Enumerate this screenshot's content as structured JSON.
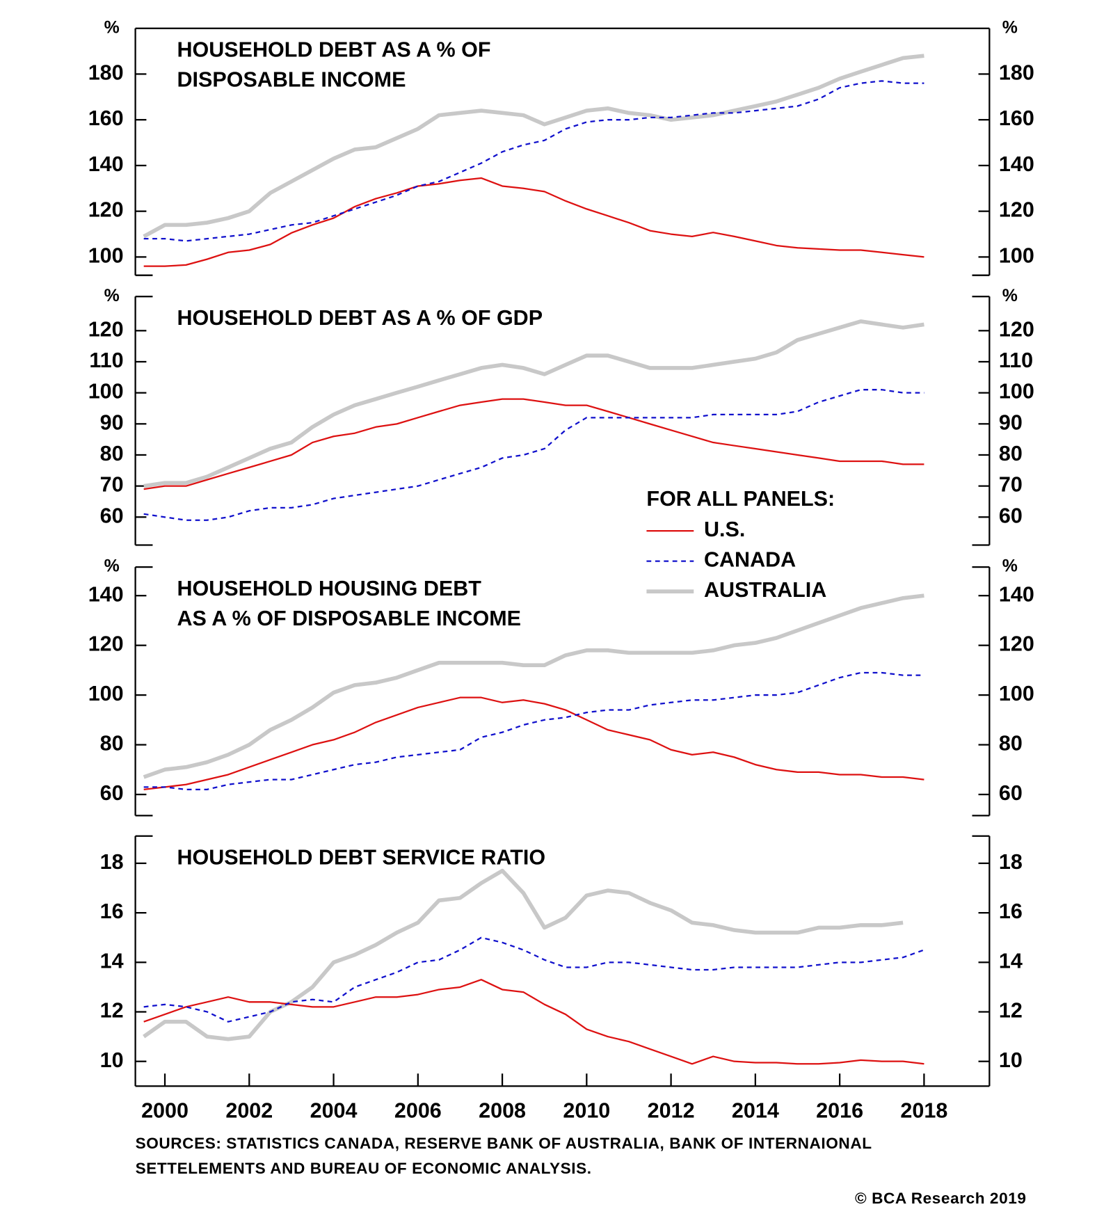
{
  "chart_data": [
    {
      "type": "line",
      "title": [
        "HOUSEHOLD DEBT AS A % OF",
        "DISPOSABLE INCOME"
      ],
      "y_unit": "%",
      "x": [
        1999.5,
        2000,
        2000.5,
        2001,
        2001.5,
        2002,
        2002.5,
        2003,
        2003.5,
        2004,
        2004.5,
        2005,
        2005.5,
        2006,
        2006.5,
        2007,
        2007.5,
        2008,
        2008.5,
        2009,
        2009.5,
        2010,
        2010.5,
        2011,
        2011.5,
        2012,
        2012.5,
        2013,
        2013.5,
        2014,
        2014.5,
        2015,
        2015.5,
        2016,
        2016.5,
        2017,
        2017.5,
        2018
      ],
      "xlim": [
        1999.3,
        2019.55
      ],
      "ylim": [
        92,
        200
      ],
      "yticks": [
        100,
        120,
        140,
        160,
        180
      ],
      "series": [
        {
          "name": "U.S.",
          "color": "#dd1111",
          "style": "solid",
          "width": 2,
          "values": [
            96,
            96,
            96.5,
            99,
            102,
            103,
            105.5,
            110.5,
            114,
            117,
            122,
            125.5,
            128,
            131,
            132,
            133.5,
            134.5,
            131,
            130,
            128.6,
            124.5,
            121,
            118,
            115,
            111.5,
            110,
            109,
            110.7,
            109,
            107,
            105,
            104,
            103.5,
            103,
            103,
            102,
            101,
            100
          ]
        },
        {
          "name": "CANADA",
          "color": "#1010cc",
          "style": "dashed",
          "width": 2,
          "values": [
            108,
            108,
            107,
            108,
            109,
            110,
            112,
            114,
            115,
            118,
            121,
            124,
            127,
            131,
            133,
            137,
            141,
            146,
            149,
            151,
            156,
            159,
            160,
            160,
            161,
            161,
            162,
            163,
            163,
            164,
            165,
            166,
            169,
            174,
            176,
            177,
            176,
            176
          ]
        },
        {
          "name": "AUSTRALIA",
          "color": "#c8c8c8",
          "style": "solid",
          "width": 5,
          "values": [
            109,
            114,
            114,
            115,
            117,
            120,
            128,
            133,
            138,
            143,
            147,
            148,
            152,
            156,
            162,
            163,
            164,
            163,
            162,
            158,
            161,
            164,
            165,
            163,
            162,
            160,
            161,
            162,
            164,
            166,
            168,
            171,
            174,
            178,
            181,
            184,
            187,
            188
          ]
        }
      ]
    },
    {
      "type": "line",
      "title": [
        "HOUSEHOLD DEBT AS A % OF GDP"
      ],
      "y_unit": "%",
      "x": [
        1999.5,
        2000,
        2000.5,
        2001,
        2001.5,
        2002,
        2002.5,
        2003,
        2003.5,
        2004,
        2004.5,
        2005,
        2005.5,
        2006,
        2006.5,
        2007,
        2007.5,
        2008,
        2008.5,
        2009,
        2009.5,
        2010,
        2010.5,
        2011,
        2011.5,
        2012,
        2012.5,
        2013,
        2013.5,
        2014,
        2014.5,
        2015,
        2015.5,
        2016,
        2016.5,
        2017,
        2017.5,
        2018
      ],
      "xlim": [
        1999.3,
        2019.55
      ],
      "ylim": [
        51,
        131
      ],
      "yticks": [
        60,
        70,
        80,
        90,
        100,
        110,
        120
      ],
      "series": [
        {
          "name": "U.S.",
          "color": "#dd1111",
          "style": "solid",
          "width": 2,
          "values": [
            69,
            70,
            70,
            72,
            74,
            76,
            78,
            80,
            84,
            86,
            87,
            89,
            90,
            92,
            94,
            96,
            97,
            98,
            98,
            97,
            96,
            96,
            94,
            92,
            90,
            88,
            86,
            84,
            83,
            82,
            81,
            80,
            79,
            78,
            78,
            78,
            77,
            77
          ]
        },
        {
          "name": "CANADA",
          "color": "#1010cc",
          "style": "dashed",
          "width": 2,
          "values": [
            61,
            60,
            59,
            59,
            60,
            62,
            63,
            63,
            64,
            66,
            67,
            68,
            69,
            70,
            72,
            74,
            76,
            79,
            80,
            82,
            88,
            92,
            92,
            92,
            92,
            92,
            92,
            93,
            93,
            93,
            93,
            94,
            97,
            99,
            101,
            101,
            100,
            100
          ]
        },
        {
          "name": "AUSTRALIA",
          "color": "#c8c8c8",
          "style": "solid",
          "width": 5,
          "values": [
            70,
            71,
            71,
            73,
            76,
            79,
            82,
            84,
            89,
            93,
            96,
            98,
            100,
            102,
            104,
            106,
            108,
            109,
            108,
            106,
            109,
            112,
            112,
            110,
            108,
            108,
            108,
            109,
            110,
            111,
            113,
            117,
            119,
            121,
            123,
            122,
            121,
            122
          ]
        }
      ]
    },
    {
      "type": "line",
      "title": [
        "HOUSEHOLD HOUSING DEBT",
        "AS A % OF DISPOSABLE INCOME"
      ],
      "y_unit": "%",
      "x": [
        1999.5,
        2000,
        2000.5,
        2001,
        2001.5,
        2002,
        2002.5,
        2003,
        2003.5,
        2004,
        2004.5,
        2005,
        2005.5,
        2006,
        2006.5,
        2007,
        2007.5,
        2008,
        2008.5,
        2009,
        2009.5,
        2010,
        2010.5,
        2011,
        2011.5,
        2012,
        2012.5,
        2013,
        2013.5,
        2014,
        2014.5,
        2015,
        2015.5,
        2016,
        2016.5,
        2017,
        2017.5,
        2018
      ],
      "xlim": [
        1999.3,
        2019.55
      ],
      "ylim": [
        51.5,
        151.5
      ],
      "yticks": [
        60,
        80,
        100,
        120,
        140
      ],
      "series": [
        {
          "name": "U.S.",
          "color": "#dd1111",
          "style": "solid",
          "width": 2,
          "values": [
            62,
            63,
            64,
            66,
            68,
            71,
            74,
            77,
            80,
            82,
            85,
            89,
            92,
            95,
            97,
            99,
            99,
            97,
            98,
            96.5,
            94,
            90,
            86,
            84,
            82,
            78,
            76,
            77,
            75,
            72,
            70,
            69,
            69,
            68,
            68,
            67,
            67,
            66
          ]
        },
        {
          "name": "CANADA",
          "color": "#1010cc",
          "style": "dashed",
          "width": 2,
          "values": [
            63,
            63,
            62,
            62,
            64,
            65,
            66,
            66,
            68,
            70,
            72,
            73,
            75,
            76,
            77,
            78,
            83,
            85,
            88,
            90,
            91,
            93,
            94,
            94,
            96,
            97,
            98,
            98,
            99,
            100,
            100,
            101,
            104,
            107,
            109,
            109,
            108,
            108
          ]
        },
        {
          "name": "AUSTRALIA",
          "color": "#c8c8c8",
          "style": "solid",
          "width": 5,
          "values": [
            67,
            70,
            71,
            73,
            76,
            80,
            86,
            90,
            95,
            101,
            104,
            105,
            107,
            110,
            113,
            113,
            113,
            113,
            112,
            112,
            116,
            118,
            118,
            117,
            117,
            117,
            117,
            118,
            120,
            121,
            123,
            126,
            129,
            132,
            135,
            137,
            139,
            140
          ]
        }
      ]
    },
    {
      "type": "line",
      "title": [
        "HOUSEHOLD DEBT SERVICE RATIO"
      ],
      "x": [
        1999.5,
        2000,
        2000.5,
        2001,
        2001.5,
        2002,
        2002.5,
        2003,
        2003.5,
        2004,
        2004.5,
        2005,
        2005.5,
        2006,
        2006.5,
        2007,
        2007.5,
        2008,
        2008.5,
        2009,
        2009.5,
        2010,
        2010.5,
        2011,
        2011.5,
        2012,
        2012.5,
        2013,
        2013.5,
        2014,
        2014.5,
        2015,
        2015.5,
        2016,
        2016.5,
        2017,
        2017.5,
        2018
      ],
      "xlim": [
        1999.3,
        2019.55
      ],
      "xticks": [
        2000,
        2002,
        2004,
        2006,
        2008,
        2010,
        2012,
        2014,
        2016,
        2018
      ],
      "ylim": [
        9,
        19.1
      ],
      "yticks": [
        10,
        12,
        14,
        16,
        18
      ],
      "series": [
        {
          "name": "U.S.",
          "color": "#dd1111",
          "style": "solid",
          "width": 2,
          "values": [
            11.6,
            11.9,
            12.2,
            12.4,
            12.6,
            12.4,
            12.4,
            12.3,
            12.2,
            12.2,
            12.4,
            12.6,
            12.6,
            12.7,
            12.9,
            13.0,
            13.3,
            12.9,
            12.8,
            12.3,
            11.9,
            11.3,
            11.0,
            10.8,
            10.5,
            10.2,
            9.9,
            10.2,
            10.0,
            9.95,
            9.95,
            9.9,
            9.9,
            9.95,
            10.05,
            10.0,
            10.0,
            9.9
          ]
        },
        {
          "name": "CANADA",
          "color": "#1010cc",
          "style": "dashed",
          "width": 2,
          "values": [
            12.2,
            12.3,
            12.2,
            12.0,
            11.6,
            11.8,
            12.0,
            12.4,
            12.5,
            12.4,
            13.0,
            13.3,
            13.6,
            14.0,
            14.1,
            14.5,
            15.0,
            14.8,
            14.5,
            14.1,
            13.8,
            13.8,
            14.0,
            14.0,
            13.9,
            13.8,
            13.7,
            13.7,
            13.8,
            13.8,
            13.8,
            13.8,
            13.9,
            14.0,
            14.0,
            14.1,
            14.2,
            14.5
          ]
        },
        {
          "name": "AUSTRALIA",
          "color": "#c8c8c8",
          "style": "solid",
          "width": 5,
          "values": [
            11.0,
            11.6,
            11.6,
            11.0,
            10.9,
            11.0,
            12.0,
            12.4,
            13.0,
            14.0,
            14.3,
            14.7,
            15.2,
            15.6,
            16.5,
            16.6,
            17.2,
            17.7,
            16.8,
            15.4,
            15.8,
            16.7,
            16.9,
            16.8,
            16.4,
            16.1,
            15.6,
            15.5,
            15.3,
            15.2,
            15.2,
            15.2,
            15.4,
            15.4,
            15.5,
            15.5,
            15.6,
            null
          ]
        }
      ]
    }
  ],
  "legend_title": "FOR ALL PANELS:",
  "sources": [
    "SOURCES: STATISTICS CANADA, RESERVE BANK OF AUSTRALIA, BANK OF INTERNAIONAL",
    "SETTELEMENTS AND BUREAU OF ECONOMIC ANALYSIS."
  ],
  "copyright": "© BCA Research 2019"
}
